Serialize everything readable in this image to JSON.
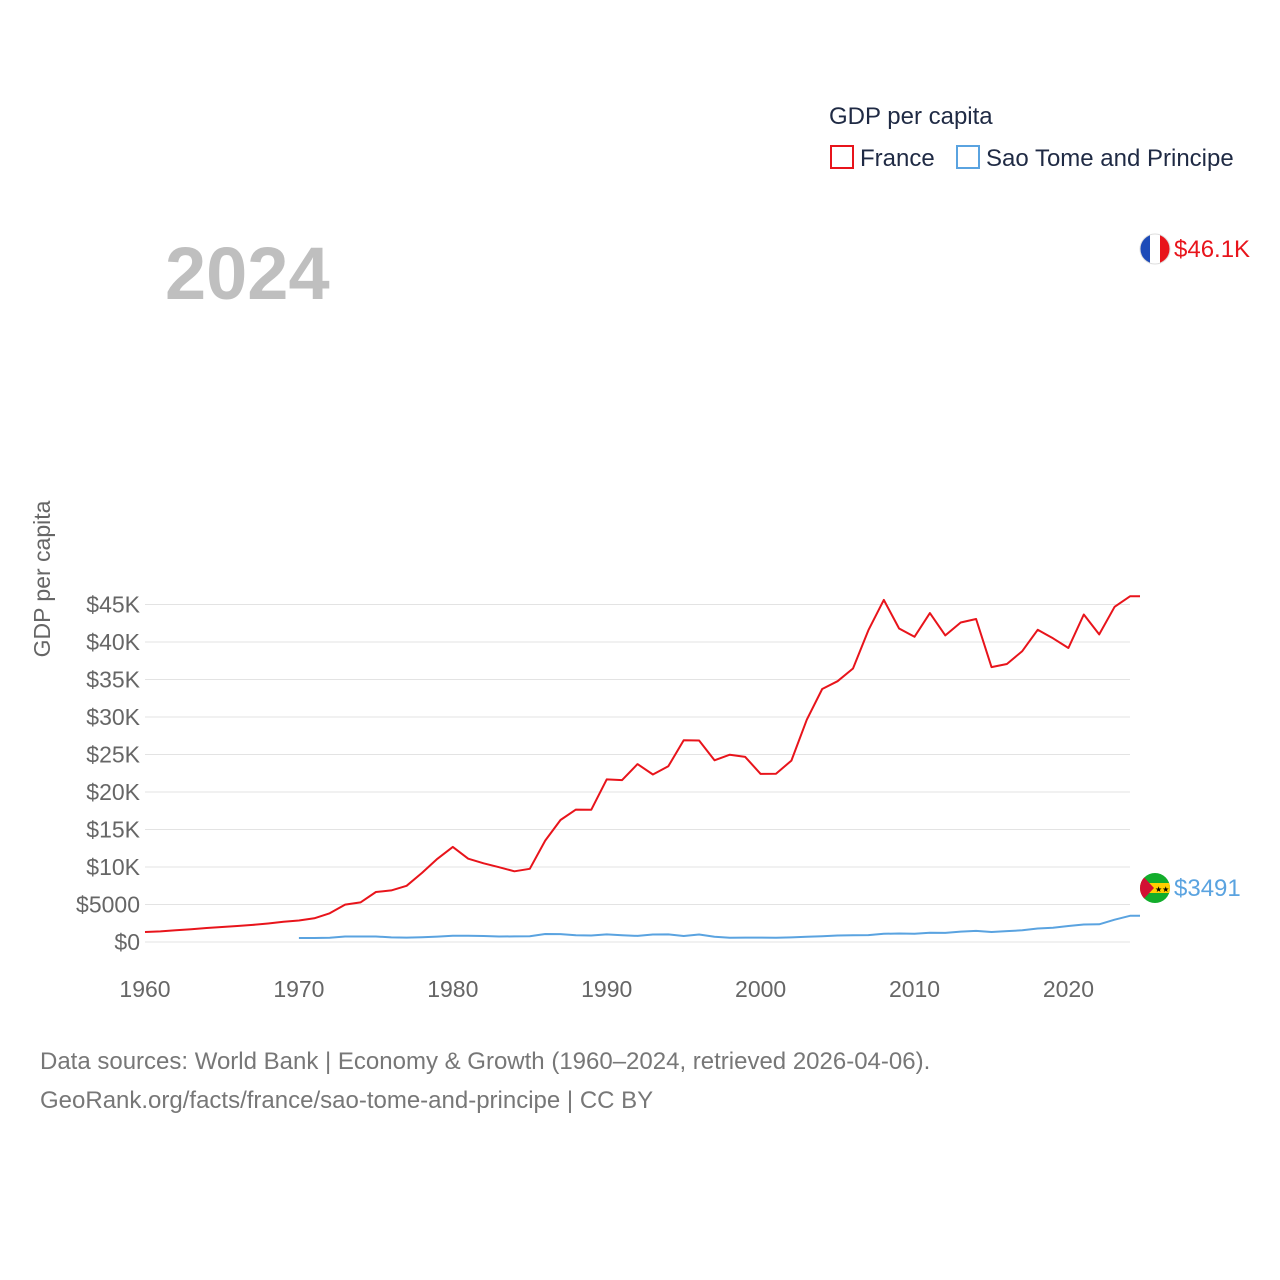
{
  "legend": {
    "title": "GDP per capita",
    "items": [
      {
        "label": "France",
        "color": "#e8141b"
      },
      {
        "label": "Sao Tome and Principe",
        "color": "#5aa3e0"
      }
    ]
  },
  "year_label": "2024",
  "end_labels": {
    "france": "$46.1K",
    "stp": "$3491"
  },
  "flags": {
    "france": "france-flag-icon",
    "stp": "sao-tome-and-principe-flag-icon"
  },
  "footer": {
    "line1": "Data sources: World Bank | Economy & Growth (1960–2024, retrieved 2026-04-06).",
    "line2": "GeoRank.org/facts/france/sao-tome-and-principe | CC BY"
  },
  "chart_data": {
    "type": "line",
    "title": "GDP per capita",
    "xlabel": "",
    "ylabel": "GDP per capita",
    "xlim": [
      1960,
      2024
    ],
    "ylim": [
      0,
      46100
    ],
    "y_ticks": [
      0,
      5000,
      10000,
      15000,
      20000,
      25000,
      30000,
      35000,
      40000,
      45000
    ],
    "y_tick_labels": [
      "$0",
      "$5000",
      "$10K",
      "$15K",
      "$20K",
      "$25K",
      "$30K",
      "$35K",
      "$40K",
      "$45K"
    ],
    "x_ticks": [
      1960,
      1970,
      1980,
      1990,
      2000,
      2010,
      2020
    ],
    "x_tick_labels": [
      "1960",
      "1970",
      "1980",
      "1990",
      "2000",
      "2010",
      "2020"
    ],
    "grid": true,
    "legend_position": "top-right",
    "series": [
      {
        "name": "France",
        "color": "#e8141b",
        "x": [
          1960,
          1961,
          1962,
          1963,
          1964,
          1965,
          1966,
          1967,
          1968,
          1969,
          1970,
          1971,
          1972,
          1973,
          1974,
          1975,
          1976,
          1977,
          1978,
          1979,
          1980,
          1981,
          1982,
          1983,
          1984,
          1985,
          1986,
          1987,
          1988,
          1989,
          1990,
          1991,
          1992,
          1993,
          1994,
          1995,
          1996,
          1997,
          1998,
          1999,
          2000,
          2001,
          2002,
          2003,
          2004,
          2005,
          2006,
          2007,
          2008,
          2009,
          2010,
          2011,
          2012,
          2013,
          2014,
          2015,
          2016,
          2017,
          2018,
          2019,
          2020,
          2021,
          2022,
          2023,
          2024
        ],
        "values": [
          1340,
          1420,
          1560,
          1710,
          1870,
          2000,
          2130,
          2280,
          2470,
          2690,
          2860,
          3160,
          3830,
          4980,
          5280,
          6670,
          6880,
          7490,
          9210,
          11090,
          12680,
          11110,
          10490,
          9970,
          9430,
          9760,
          13520,
          16270,
          17650,
          17640,
          21680,
          21590,
          23720,
          22340,
          23430,
          26890,
          26870,
          24230,
          24970,
          24680,
          22420,
          22430,
          24180,
          29640,
          33740,
          34770,
          36470,
          41570,
          45620,
          41800,
          40700,
          43850,
          40880,
          42600,
          43070,
          36650,
          37060,
          38780,
          41630,
          40500,
          39200,
          43660,
          41010,
          44690,
          46100
        ]
      },
      {
        "name": "Sao Tome and Principe",
        "color": "#5aa3e0",
        "x": [
          1970,
          1971,
          1972,
          1973,
          1974,
          1975,
          1976,
          1977,
          1978,
          1979,
          1980,
          1981,
          1982,
          1983,
          1984,
          1985,
          1986,
          1987,
          1988,
          1989,
          1990,
          1991,
          1992,
          1993,
          1994,
          1995,
          1996,
          1997,
          1998,
          1999,
          2000,
          2001,
          2002,
          2003,
          2004,
          2005,
          2006,
          2007,
          2008,
          2009,
          2010,
          2011,
          2012,
          2013,
          2014,
          2015,
          2016,
          2017,
          2018,
          2019,
          2020,
          2021,
          2022,
          2023,
          2024
        ],
        "values": [
          540,
          530,
          570,
          730,
          740,
          740,
          620,
          590,
          640,
          720,
          840,
          840,
          800,
          740,
          750,
          770,
          1060,
          1050,
          890,
          870,
          1010,
          910,
          820,
          1000,
          1010,
          800,
          1000,
          690,
          570,
          580,
          580,
          570,
          610,
          690,
          760,
          860,
          900,
          920,
          1100,
          1140,
          1100,
          1230,
          1220,
          1390,
          1480,
          1330,
          1450,
          1560,
          1800,
          1910,
          2130,
          2330,
          2360,
          2970,
          3491
        ]
      }
    ]
  }
}
